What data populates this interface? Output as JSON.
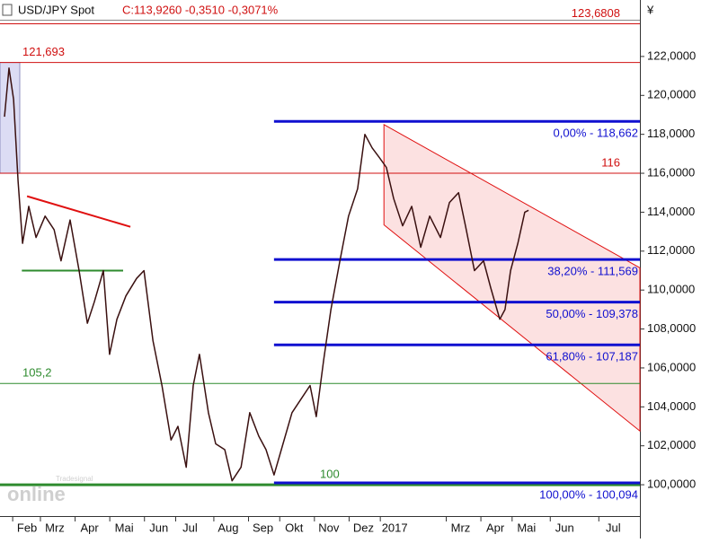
{
  "chart_data": {
    "type": "line",
    "title": "USD/JPY Spot",
    "quote": "C:113,9260 -0,3510 -0,3071%",
    "currency": "¥",
    "logo": "online",
    "logo_sub": "Tradesignal",
    "color": "#3a1010",
    "x": [
      0.35,
      0.48,
      0.61,
      0.74,
      0.87,
      1.05,
      1.26,
      1.52,
      1.78,
      1.98,
      2.24,
      2.5,
      2.74,
      2.94,
      3.2,
      3.38,
      3.59,
      3.85,
      4.16,
      4.37,
      4.63,
      4.89,
      5.15,
      5.35,
      5.59,
      5.79,
      5.97,
      6.23,
      6.44,
      6.7,
      6.91,
      7.17,
      7.42,
      7.68,
      7.89,
      8.12,
      8.38,
      8.64,
      8.9,
      9.16,
      9.34,
      9.55,
      9.76,
      10.02,
      10.27,
      10.53,
      10.74,
      10.95,
      11.16,
      11.36,
      11.57,
      11.83,
      12.09,
      12.35,
      12.61,
      12.92,
      13.18,
      13.44,
      13.64,
      13.9,
      14.16,
      14.37,
      14.63,
      14.78,
      14.94,
      15.15,
      15.35,
      15.46
    ],
    "values": [
      118.9,
      121.4,
      119.8,
      115.6,
      112.4,
      114.3,
      112.7,
      113.8,
      113.1,
      111.5,
      113.6,
      111.0,
      108.3,
      109.4,
      111.0,
      106.7,
      108.5,
      109.7,
      110.6,
      111.0,
      107.4,
      105.1,
      102.3,
      103.0,
      100.9,
      105.1,
      106.7,
      103.7,
      102.1,
      101.8,
      100.2,
      100.9,
      103.7,
      102.5,
      101.8,
      100.5,
      102.1,
      103.7,
      104.4,
      105.1,
      103.5,
      106.4,
      109.0,
      111.5,
      113.8,
      115.2,
      118.0,
      117.3,
      116.8,
      116.3,
      114.7,
      113.3,
      114.3,
      112.2,
      113.8,
      112.7,
      114.5,
      115.0,
      113.3,
      111.0,
      111.5,
      110.1,
      108.5,
      109.0,
      111.0,
      112.4,
      114.0,
      114.1
    ],
    "xlim": [
      0.22,
      18.67
    ],
    "ylim": [
      98.39,
      123.84
    ],
    "xticks": [
      {
        "value": 1,
        "label": "Feb"
      },
      {
        "value": 1.8,
        "label": "Mrz"
      },
      {
        "value": 2.8,
        "label": "Apr"
      },
      {
        "value": 3.8,
        "label": "Mai"
      },
      {
        "value": 4.8,
        "label": "Jun"
      },
      {
        "value": 5.7,
        "label": "Jul"
      },
      {
        "value": 6.8,
        "label": "Aug"
      },
      {
        "value": 7.8,
        "label": "Sep"
      },
      {
        "value": 8.7,
        "label": "Okt"
      },
      {
        "value": 9.7,
        "label": "Nov"
      },
      {
        "value": 10.7,
        "label": "Dez"
      },
      {
        "value": 11.6,
        "label": "2017"
      },
      {
        "value": 13.5,
        "label": "Mrz"
      },
      {
        "value": 14.5,
        "label": "Apr"
      },
      {
        "value": 15.4,
        "label": "Mai"
      },
      {
        "value": 16.5,
        "label": "Jun"
      },
      {
        "value": 17.9,
        "label": "Jul"
      }
    ],
    "yticks": [
      {
        "value": 100,
        "label": "100,0000"
      },
      {
        "value": 102,
        "label": "102,0000"
      },
      {
        "value": 104,
        "label": "104,0000"
      },
      {
        "value": 106,
        "label": "106,0000"
      },
      {
        "value": 108,
        "label": "108,0000"
      },
      {
        "value": 110,
        "label": "110,0000"
      },
      {
        "value": 112,
        "label": "112,0000"
      },
      {
        "value": 114,
        "label": "114,0000"
      },
      {
        "value": 116,
        "label": "116,0000"
      },
      {
        "value": 118,
        "label": "118,0000"
      },
      {
        "value": 120,
        "label": "120,0000"
      },
      {
        "value": 122,
        "label": "122,0000"
      }
    ],
    "levels": [
      {
        "value": 123.6808,
        "label": "123,6808",
        "color": "#d01010",
        "side": "right"
      },
      {
        "value": 121.693,
        "label": "121,693",
        "color": "#d01010",
        "side": "left"
      },
      {
        "value": 116,
        "label": "116",
        "color": "#d01010",
        "side": "right"
      },
      {
        "value": 105.2,
        "label": "105,2",
        "color": "#2e8b2e",
        "side": "left"
      },
      {
        "value": 100,
        "label": "100",
        "color": "#2e8b2e",
        "side": "middle"
      }
    ],
    "fib": [
      {
        "value": 118.662,
        "label": "0,00% - 118,662",
        "from": 8.12
      },
      {
        "value": 111.569,
        "label": "38,20% - 111,569",
        "from": 8.12
      },
      {
        "value": 109.378,
        "label": "50,00% - 109,378",
        "from": 8.12
      },
      {
        "value": 107.187,
        "label": "61,80% - 107,187",
        "from": 8.12
      },
      {
        "value": 100.094,
        "label": "100,00% - 100,094",
        "from": 8.12
      }
    ],
    "fib_color": "#1010d0",
    "trendlines": [
      {
        "x": [
          1.0,
          3.98
        ],
        "y": [
          114.82,
          113.25
        ],
        "color": "#e01010"
      },
      {
        "x": [
          0.85,
          3.77
        ],
        "y": [
          111.0,
          111.0
        ],
        "color": "#2e8b2e"
      }
    ],
    "channel": {
      "x": [
        11.29,
        18.67
      ],
      "upper": [
        118.5,
        111.14
      ],
      "lower": [
        113.35,
        102.76
      ],
      "color": "#e01010"
    },
    "highlight": {
      "x": [
        0.22,
        0.79
      ],
      "y": [
        116,
        121.693
      ]
    }
  }
}
